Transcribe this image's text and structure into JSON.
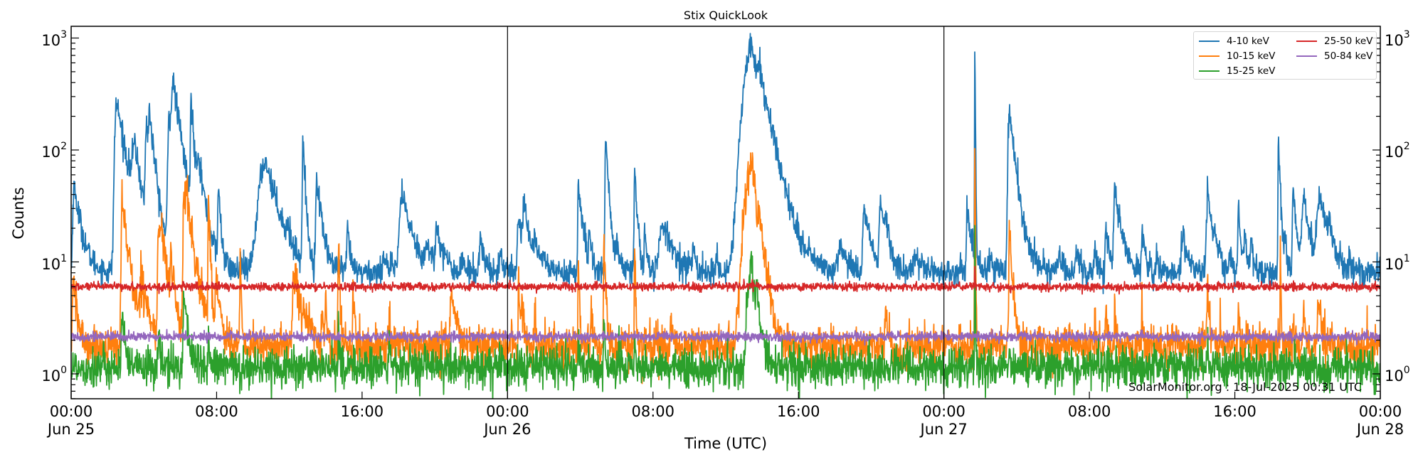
{
  "chart_data": {
    "type": "line",
    "title": "Stix QuickLook",
    "xlabel": "Time (UTC)",
    "ylabel": "Counts",
    "yscale": "log",
    "ylim": [
      0.6,
      1270
    ],
    "xlim_hours": [
      0,
      72
    ],
    "grid": false,
    "legend_position": "upper right",
    "annotation": "SolarMonitor.org : 18-Jul-2025 00:31 UTC",
    "day_separators_hours": [
      24,
      48
    ],
    "x_ticks": [
      {
        "hour": 0,
        "label": "00:00",
        "sublabel": "Jun 25"
      },
      {
        "hour": 8,
        "label": "08:00",
        "sublabel": ""
      },
      {
        "hour": 16,
        "label": "16:00",
        "sublabel": ""
      },
      {
        "hour": 24,
        "label": "00:00",
        "sublabel": "Jun 26"
      },
      {
        "hour": 32,
        "label": "08:00",
        "sublabel": ""
      },
      {
        "hour": 40,
        "label": "16:00",
        "sublabel": ""
      },
      {
        "hour": 48,
        "label": "00:00",
        "sublabel": "Jun 27"
      },
      {
        "hour": 56,
        "label": "08:00",
        "sublabel": ""
      },
      {
        "hour": 64,
        "label": "16:00",
        "sublabel": ""
      },
      {
        "hour": 72,
        "label": "00:00",
        "sublabel": "Jun 28"
      }
    ],
    "y_ticks": [
      {
        "value": 1,
        "base": "10",
        "exp": "0"
      },
      {
        "value": 10,
        "base": "10",
        "exp": "1"
      },
      {
        "value": 100,
        "base": "10",
        "exp": "2"
      },
      {
        "value": 1000,
        "base": "10",
        "exp": "3"
      }
    ],
    "series": [
      {
        "name": "4-10 keV",
        "color": "#1f77b4",
        "baseline": 8.1,
        "noise": 0.06,
        "events": [
          [
            0.15,
            48,
            0.05,
            0.35
          ],
          [
            2.5,
            270,
            0.08,
            0.45
          ],
          [
            3.2,
            14,
            0.05,
            0.2
          ],
          [
            3.5,
            83,
            0.12,
            0.35
          ],
          [
            4.1,
            45,
            0.04,
            0.15
          ],
          [
            4.15,
            130,
            0.04,
            0.2
          ],
          [
            4.3,
            145,
            0.04,
            0.3
          ],
          [
            5.4,
            210,
            0.06,
            0.3
          ],
          [
            5.6,
            310,
            0.06,
            0.4
          ],
          [
            6.6,
            265,
            0.03,
            0.15
          ],
          [
            7.0,
            68,
            0.08,
            0.35
          ],
          [
            8.1,
            43,
            0.03,
            0.12
          ],
          [
            9.3,
            10,
            0.03,
            0.1
          ],
          [
            10.7,
            80,
            0.3,
            0.6
          ],
          [
            11.9,
            14,
            0.03,
            0.1
          ],
          [
            12.75,
            114,
            0.03,
            0.12
          ],
          [
            13.5,
            55,
            0.04,
            0.25
          ],
          [
            15.2,
            21,
            0.03,
            0.12
          ],
          [
            17.2,
            13,
            0.05,
            0.15
          ],
          [
            18.2,
            39,
            0.12,
            0.5
          ],
          [
            19.6,
            12,
            0.1,
            0.3
          ],
          [
            20.1,
            21,
            0.05,
            0.3
          ],
          [
            21.5,
            12,
            0.03,
            0.1
          ],
          [
            22.5,
            17,
            0.05,
            0.2
          ],
          [
            23.6,
            14,
            0.03,
            0.1
          ],
          [
            24.6,
            25,
            0.05,
            0.3
          ],
          [
            24.9,
            28,
            0.05,
            0.3
          ],
          [
            25.5,
            14,
            0.05,
            0.2
          ],
          [
            26.0,
            11,
            0.05,
            0.15
          ],
          [
            27.9,
            49,
            0.03,
            0.2
          ],
          [
            28.5,
            18,
            0.03,
            0.12
          ],
          [
            29.4,
            122,
            0.03,
            0.15
          ],
          [
            30.0,
            13,
            0.05,
            0.15
          ],
          [
            31.0,
            66,
            0.03,
            0.12
          ],
          [
            31.55,
            19,
            0.03,
            0.1
          ],
          [
            32.6,
            21,
            0.2,
            0.5
          ],
          [
            34.2,
            14,
            0.03,
            0.1
          ],
          [
            35.5,
            11,
            0.03,
            0.1
          ],
          [
            37.45,
            820,
            0.35,
            0.5
          ],
          [
            37.85,
            180,
            0.1,
            0.6
          ],
          [
            39.5,
            10,
            0.05,
            0.1
          ],
          [
            40.6,
            11,
            0.1,
            0.2
          ],
          [
            42.3,
            15,
            0.1,
            0.3
          ],
          [
            43.6,
            31,
            0.05,
            0.35
          ],
          [
            44.5,
            31,
            0.05,
            0.35
          ],
          [
            44.8,
            14,
            0.05,
            0.15
          ],
          [
            46.5,
            10,
            0.2,
            0.3
          ],
          [
            48.9,
            10,
            0.03,
            0.1
          ],
          [
            49.3,
            28,
            0.05,
            0.25
          ],
          [
            49.7,
            900,
            0.01,
            0.02
          ],
          [
            50.5,
            12,
            0.03,
            0.1
          ],
          [
            51.6,
            223,
            0.06,
            0.3
          ],
          [
            53.0,
            10,
            0.1,
            0.2
          ],
          [
            54.3,
            12,
            0.05,
            0.2
          ],
          [
            55.3,
            12,
            0.05,
            0.2
          ],
          [
            56.3,
            14,
            0.03,
            0.1
          ],
          [
            56.9,
            23,
            0.03,
            0.15
          ],
          [
            57.4,
            44,
            0.05,
            0.3
          ],
          [
            58.9,
            20,
            0.03,
            0.15
          ],
          [
            59.7,
            12,
            0.03,
            0.1
          ],
          [
            61.1,
            18,
            0.05,
            0.25
          ],
          [
            62.5,
            41,
            0.05,
            0.25
          ],
          [
            62.9,
            13,
            0.05,
            0.2
          ],
          [
            63.7,
            11,
            0.03,
            0.1
          ],
          [
            64.2,
            32,
            0.03,
            0.12
          ],
          [
            64.55,
            19,
            0.03,
            0.12
          ],
          [
            64.9,
            16,
            0.03,
            0.12
          ],
          [
            66.4,
            121,
            0.02,
            0.1
          ],
          [
            66.75,
            17,
            0.03,
            0.1
          ],
          [
            67.2,
            44,
            0.03,
            0.15
          ],
          [
            67.8,
            38,
            0.1,
            0.3
          ],
          [
            68.7,
            37,
            0.15,
            0.4
          ],
          [
            69.2,
            15,
            0.05,
            0.2
          ],
          [
            70.3,
            10,
            0.05,
            0.1
          ]
        ]
      },
      {
        "name": "10-15 keV",
        "color": "#ff7f0e",
        "baseline": 1.75,
        "noise": 0.09,
        "events": [
          [
            0.1,
            7,
            0.03,
            0.2
          ],
          [
            2.8,
            35,
            0.04,
            0.3
          ],
          [
            3.9,
            7,
            0.1,
            0.3
          ],
          [
            4.8,
            18,
            0.04,
            0.2
          ],
          [
            4.95,
            16,
            0.04,
            0.3
          ],
          [
            5.5,
            8,
            0.05,
            0.2
          ],
          [
            6.2,
            40,
            0.04,
            0.15
          ],
          [
            6.35,
            28,
            0.06,
            0.4
          ],
          [
            7.55,
            41,
            0.02,
            0.08
          ],
          [
            8.0,
            6.6,
            0.05,
            0.2
          ],
          [
            9.3,
            10,
            0.02,
            0.05
          ],
          [
            12.25,
            8.7,
            0.06,
            0.4
          ],
          [
            13.8,
            4.3,
            0.03,
            0.05
          ],
          [
            14.0,
            4.5,
            0.03,
            0.05
          ],
          [
            14.7,
            17.5,
            0.02,
            0.06
          ],
          [
            15.5,
            5.7,
            0.02,
            0.08
          ],
          [
            17.5,
            4.7,
            0.02,
            0.05
          ],
          [
            20.9,
            5.6,
            0.05,
            0.2
          ],
          [
            24.6,
            5.7,
            0.02,
            0.1
          ],
          [
            24.8,
            4.4,
            0.02,
            0.1
          ],
          [
            25.5,
            4.0,
            0.02,
            0.05
          ],
          [
            27.9,
            9.5,
            0.02,
            0.05
          ],
          [
            28.6,
            3.7,
            0.02,
            0.05
          ],
          [
            29.3,
            16,
            0.02,
            0.08
          ],
          [
            31.0,
            12.2,
            0.02,
            0.05
          ],
          [
            33.0,
            3.2,
            0.05,
            0.1
          ],
          [
            37.45,
            73,
            0.3,
            0.3
          ],
          [
            37.85,
            12,
            0.05,
            0.2
          ],
          [
            44.8,
            3.5,
            0.03,
            0.1
          ],
          [
            49.7,
            105,
            0.01,
            0.02
          ],
          [
            51.6,
            17,
            0.03,
            0.15
          ],
          [
            56.3,
            3.4,
            0.02,
            0.05
          ],
          [
            56.9,
            4.8,
            0.02,
            0.05
          ],
          [
            57.4,
            4.4,
            0.02,
            0.05
          ],
          [
            58.9,
            4.3,
            0.02,
            0.05
          ],
          [
            60.8,
            2.8,
            0.02,
            0.05
          ],
          [
            62.5,
            6.3,
            0.03,
            0.08
          ],
          [
            63.2,
            3.2,
            0.02,
            0.05
          ],
          [
            64.2,
            3.9,
            0.02,
            0.05
          ],
          [
            64.7,
            3.3,
            0.02,
            0.05
          ],
          [
            66.5,
            12.5,
            0.01,
            0.03
          ],
          [
            67.2,
            3.9,
            0.02,
            0.05
          ],
          [
            67.8,
            3.8,
            0.03,
            0.08
          ],
          [
            68.6,
            4.9,
            0.05,
            0.15
          ],
          [
            69.3,
            2.8,
            0.02,
            0.05
          ]
        ]
      },
      {
        "name": "15-25 keV",
        "color": "#2ca02c",
        "baseline": 1.15,
        "noise": 0.09,
        "events": [
          [
            2.8,
            3.9,
            0.03,
            0.1
          ],
          [
            4.8,
            2.2,
            0.03,
            0.1
          ],
          [
            6.2,
            4.9,
            0.04,
            0.2
          ],
          [
            7.55,
            2.3,
            0.02,
            0.05
          ],
          [
            14.7,
            3.0,
            0.02,
            0.05
          ],
          [
            17.5,
            1.8,
            0.02,
            0.05
          ],
          [
            27.9,
            2.0,
            0.02,
            0.05
          ],
          [
            29.3,
            3.2,
            0.02,
            0.05
          ],
          [
            31.0,
            2.1,
            0.02,
            0.05
          ],
          [
            37.4,
            10,
            0.15,
            0.2
          ],
          [
            37.7,
            4,
            0.05,
            0.2
          ],
          [
            49.7,
            23,
            0.01,
            0.02
          ],
          [
            51.6,
            2.0,
            0.03,
            0.05
          ],
          [
            62.5,
            2.0,
            0.02,
            0.05
          ]
        ]
      },
      {
        "name": "25-50 keV",
        "color": "#d62728",
        "baseline": 6.0,
        "noise": 0.018,
        "events": [
          [
            49.7,
            9.6,
            0.01,
            0.02
          ],
          [
            37.45,
            6.6,
            0.05,
            0.1
          ]
        ]
      },
      {
        "name": "50-84 keV",
        "color": "#9467bd",
        "baseline": 2.15,
        "noise": 0.02,
        "events": []
      }
    ]
  }
}
